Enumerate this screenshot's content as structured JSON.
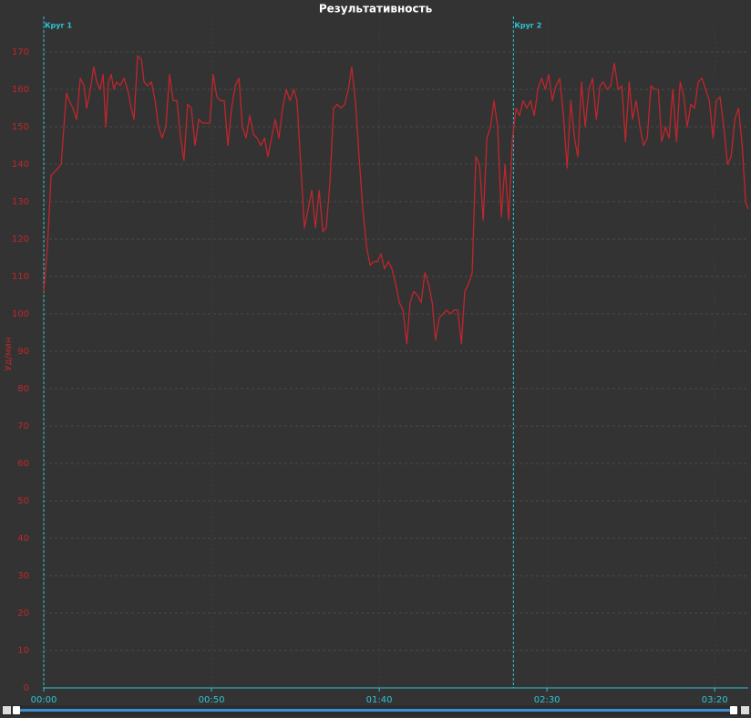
{
  "chart_data": {
    "type": "line",
    "title": "Результативность",
    "y_label": "Уд/мин",
    "xlim": [
      0,
      210
    ],
    "ylim": [
      0,
      180
    ],
    "xticks": [
      {
        "value": 0,
        "label": "00:00"
      },
      {
        "value": 50,
        "label": "00:50"
      },
      {
        "value": 100,
        "label": "01:40"
      },
      {
        "value": 150,
        "label": "02:30"
      },
      {
        "value": 200,
        "label": "03:20"
      }
    ],
    "yticks": [
      0,
      10,
      20,
      30,
      40,
      50,
      60,
      70,
      80,
      90,
      100,
      110,
      120,
      130,
      140,
      150,
      160,
      170
    ],
    "grid": true,
    "laps": [
      {
        "label": "Круг 1",
        "x": 0
      },
      {
        "label": "Круг 2",
        "x": 140
      }
    ],
    "x": [
      0,
      1.1,
      2.2,
      3.3,
      4.3,
      5.2,
      6.0,
      6.8,
      7.6,
      8.7,
      9.8,
      10.9,
      12.0,
      12.8,
      13.9,
      14.9,
      15.8,
      16.8,
      17.7,
      18.5,
      19.3,
      20.1,
      20.9,
      21.7,
      22.8,
      23.9,
      25.0,
      26.1,
      26.9,
      28.0,
      29.1,
      29.9,
      31.0,
      32.1,
      33.2,
      34.2,
      35.3,
      36.4,
      37.5,
      38.6,
      39.7,
      40.8,
      41.8,
      42.9,
      44.0,
      45.1,
      46.2,
      47.3,
      48.4,
      49.5,
      50.5,
      51.6,
      52.7,
      53.8,
      54.9,
      56.0,
      57.1,
      58.2,
      59.2,
      60.3,
      61.4,
      62.5,
      63.6,
      64.7,
      65.8,
      66.8,
      67.9,
      69.0,
      70.1,
      71.2,
      72.3,
      73.4,
      74.5,
      75.5,
      76.6,
      77.7,
      78.8,
      79.9,
      81.0,
      82.1,
      83.2,
      84.2,
      85.3,
      86.4,
      87.5,
      88.6,
      89.7,
      90.8,
      91.8,
      92.9,
      94.0,
      95.1,
      96.2,
      97.3,
      98.4,
      99.5,
      100.5,
      101.6,
      102.7,
      103.8,
      104.9,
      106.0,
      107.1,
      108.2,
      109.2,
      110.3,
      111.4,
      112.5,
      113.6,
      114.7,
      115.8,
      116.8,
      117.9,
      119.0,
      120.1,
      121.2,
      122.3,
      123.4,
      124.5,
      125.5,
      126.6,
      127.7,
      128.8,
      129.9,
      131.0,
      132.1,
      133.2,
      134.2,
      135.3,
      136.4,
      137.5,
      138.6,
      139.7,
      140.8,
      141.8,
      142.9,
      144.0,
      145.1,
      146.2,
      147.3,
      148.4,
      149.5,
      150.5,
      151.6,
      152.7,
      153.8,
      154.9,
      156.0,
      157.1,
      158.2,
      159.2,
      160.3,
      161.4,
      162.5,
      163.6,
      164.7,
      165.8,
      166.8,
      167.9,
      169.0,
      170.1,
      171.2,
      172.3,
      173.4,
      174.5,
      175.5,
      176.6,
      177.7,
      178.8,
      179.9,
      181.0,
      182.1,
      183.2,
      184.2,
      185.3,
      186.4,
      187.5,
      188.6,
      189.7,
      190.8,
      191.8,
      192.9,
      194.0,
      195.1,
      196.2,
      197.3,
      198.4,
      199.5,
      200.5,
      201.6,
      202.7,
      203.8,
      204.9,
      206.0,
      207.1,
      208.2,
      209.2,
      210.0
    ],
    "series": [
      {
        "name": "Уд/мин",
        "color": "#c0262c",
        "values": [
          106,
          118,
          137,
          138,
          139,
          140,
          150,
          159,
          157,
          155,
          152,
          163,
          161,
          155,
          160,
          166,
          162,
          160,
          164,
          150,
          162,
          164,
          160,
          162,
          161,
          163,
          160,
          155,
          152,
          169,
          168,
          162,
          161,
          162,
          157,
          150,
          147,
          150,
          164,
          157,
          157,
          147,
          141,
          156,
          155,
          145,
          152,
          151,
          151,
          151,
          164,
          158,
          157,
          157,
          145,
          155,
          161,
          163,
          150,
          147,
          153,
          148,
          147,
          145,
          147,
          142,
          147,
          152,
          147,
          155,
          160,
          157,
          160,
          157,
          140,
          123,
          128,
          133,
          123,
          133,
          122,
          123,
          135,
          155,
          156,
          155,
          156,
          160,
          166,
          157,
          142,
          128,
          118,
          113,
          114,
          114,
          116,
          112,
          114,
          112,
          108,
          103,
          101,
          92,
          103,
          106,
          105,
          103,
          111,
          108,
          103,
          93,
          99,
          100,
          101,
          100,
          101,
          101,
          92,
          106,
          108,
          111,
          142,
          140,
          125,
          147,
          150,
          157,
          150,
          126,
          140,
          125,
          147,
          155,
          153,
          157,
          155,
          157,
          153,
          160,
          163,
          160,
          164,
          157,
          161,
          163,
          153,
          139,
          157,
          147,
          142,
          162,
          150,
          160,
          163,
          152,
          161,
          162,
          160,
          161,
          167,
          160,
          161,
          146,
          162,
          152,
          157,
          150,
          145,
          147,
          161,
          160,
          160,
          146,
          150,
          147,
          160,
          146,
          162,
          158,
          150,
          156,
          155,
          162,
          163,
          160,
          157,
          147,
          157,
          158,
          150,
          140,
          142,
          152,
          155,
          145,
          130,
          128
        ]
      }
    ]
  }
}
